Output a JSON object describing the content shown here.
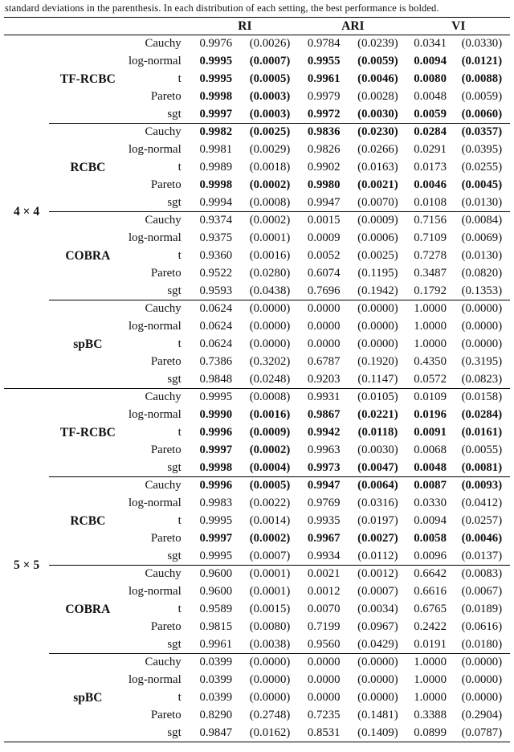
{
  "caption": "standard deviations in the parenthesis. In each distribution of each setting, the best performance is bolded.",
  "table": {
    "metrics": [
      "RI",
      "ARI",
      "VI"
    ],
    "settings": [
      {
        "label": "4 × 4",
        "methods": [
          {
            "name": "TF-RCBC",
            "rows": [
              [
                "Cauchy",
                "0.9976",
                "(0.0026)",
                "0.9784",
                "(0.0239)",
                "0.0341",
                "(0.0330)",
                [
                  0,
                  0,
                  0
                ]
              ],
              [
                "log-normal",
                "0.9995",
                "(0.0007)",
                "0.9955",
                "(0.0059)",
                "0.0094",
                "(0.0121)",
                [
                  1,
                  1,
                  1
                ]
              ],
              [
                "t",
                "0.9995",
                "(0.0005)",
                "0.9961",
                "(0.0046)",
                "0.0080",
                "(0.0088)",
                [
                  1,
                  1,
                  1
                ]
              ],
              [
                "Pareto",
                "0.9998",
                "(0.0003)",
                "0.9979",
                "(0.0028)",
                "0.0048",
                "(0.0059)",
                [
                  1,
                  0,
                  0
                ]
              ],
              [
                "sgt",
                "0.9997",
                "(0.0003)",
                "0.9972",
                "(0.0030)",
                "0.0059",
                "(0.0060)",
                [
                  1,
                  1,
                  1
                ]
              ]
            ]
          },
          {
            "name": "RCBC",
            "rows": [
              [
                "Cauchy",
                "0.9982",
                "(0.0025)",
                "0.9836",
                "(0.0230)",
                "0.0284",
                "(0.0357)",
                [
                  1,
                  1,
                  1
                ]
              ],
              [
                "log-normal",
                "0.9981",
                "(0.0029)",
                "0.9826",
                "(0.0266)",
                "0.0291",
                "(0.0395)",
                [
                  0,
                  0,
                  0
                ]
              ],
              [
                "t",
                "0.9989",
                "(0.0018)",
                "0.9902",
                "(0.0163)",
                "0.0173",
                "(0.0255)",
                [
                  0,
                  0,
                  0
                ]
              ],
              [
                "Pareto",
                "0.9998",
                "(0.0002)",
                "0.9980",
                "(0.0021)",
                "0.0046",
                "(0.0045)",
                [
                  1,
                  1,
                  1
                ]
              ],
              [
                "sgt",
                "0.9994",
                "(0.0008)",
                "0.9947",
                "(0.0070)",
                "0.0108",
                "(0.0130)",
                [
                  0,
                  0,
                  0
                ]
              ]
            ]
          },
          {
            "name": "COBRA",
            "rows": [
              [
                "Cauchy",
                "0.9374",
                "(0.0002)",
                "0.0015",
                "(0.0009)",
                "0.7156",
                "(0.0084)",
                [
                  0,
                  0,
                  0
                ]
              ],
              [
                "log-normal",
                "0.9375",
                "(0.0001)",
                "0.0009",
                "(0.0006)",
                "0.7109",
                "(0.0069)",
                [
                  0,
                  0,
                  0
                ]
              ],
              [
                "t",
                "0.9360",
                "(0.0016)",
                "0.0052",
                "(0.0025)",
                "0.7278",
                "(0.0130)",
                [
                  0,
                  0,
                  0
                ]
              ],
              [
                "Pareto",
                "0.9522",
                "(0.0280)",
                "0.6074",
                "(0.1195)",
                "0.3487",
                "(0.0820)",
                [
                  0,
                  0,
                  0
                ]
              ],
              [
                "sgt",
                "0.9593",
                "(0.0438)",
                "0.7696",
                "(0.1942)",
                "0.1792",
                "(0.1353)",
                [
                  0,
                  0,
                  0
                ]
              ]
            ]
          },
          {
            "name": "spBC",
            "rows": [
              [
                "Cauchy",
                "0.0624",
                "(0.0000)",
                "0.0000",
                "(0.0000)",
                "1.0000",
                "(0.0000)",
                [
                  0,
                  0,
                  0
                ]
              ],
              [
                "log-normal",
                "0.0624",
                "(0.0000)",
                "0.0000",
                "(0.0000)",
                "1.0000",
                "(0.0000)",
                [
                  0,
                  0,
                  0
                ]
              ],
              [
                "t",
                "0.0624",
                "(0.0000)",
                "0.0000",
                "(0.0000)",
                "1.0000",
                "(0.0000)",
                [
                  0,
                  0,
                  0
                ]
              ],
              [
                "Pareto",
                "0.7386",
                "(0.3202)",
                "0.6787",
                "(0.1920)",
                "0.4350",
                "(0.3195)",
                [
                  0,
                  0,
                  0
                ]
              ],
              [
                "sgt",
                "0.9848",
                "(0.0248)",
                "0.9203",
                "(0.1147)",
                "0.0572",
                "(0.0823)",
                [
                  0,
                  0,
                  0
                ]
              ]
            ]
          }
        ]
      },
      {
        "label": "5 × 5",
        "methods": [
          {
            "name": "TF-RCBC",
            "rows": [
              [
                "Cauchy",
                "0.9995",
                "(0.0008)",
                "0.9931",
                "(0.0105)",
                "0.0109",
                "(0.0158)",
                [
                  0,
                  0,
                  0
                ]
              ],
              [
                "log-normal",
                "0.9990",
                "(0.0016)",
                "0.9867",
                "(0.0221)",
                "0.0196",
                "(0.0284)",
                [
                  1,
                  1,
                  1
                ]
              ],
              [
                "t",
                "0.9996",
                "(0.0009)",
                "0.9942",
                "(0.0118)",
                "0.0091",
                "(0.0161)",
                [
                  1,
                  1,
                  1
                ]
              ],
              [
                "Pareto",
                "0.9997",
                "(0.0002)",
                "0.9963",
                "(0.0030)",
                "0.0068",
                "(0.0055)",
                [
                  1,
                  0,
                  0
                ]
              ],
              [
                "sgt",
                "0.9998",
                "(0.0004)",
                "0.9973",
                "(0.0047)",
                "0.0048",
                "(0.0081)",
                [
                  1,
                  1,
                  1
                ]
              ]
            ]
          },
          {
            "name": "RCBC",
            "rows": [
              [
                "Cauchy",
                "0.9996",
                "(0.0005)",
                "0.9947",
                "(0.0064)",
                "0.0087",
                "(0.0093)",
                [
                  1,
                  1,
                  1
                ]
              ],
              [
                "log-normal",
                "0.9983",
                "(0.0022)",
                "0.9769",
                "(0.0316)",
                "0.0330",
                "(0.0412)",
                [
                  0,
                  0,
                  0
                ]
              ],
              [
                "t",
                "0.9995",
                "(0.0014)",
                "0.9935",
                "(0.0197)",
                "0.0094",
                "(0.0257)",
                [
                  0,
                  0,
                  0
                ]
              ],
              [
                "Pareto",
                "0.9997",
                "(0.0002)",
                "0.9967",
                "(0.0027)",
                "0.0058",
                "(0.0046)",
                [
                  1,
                  1,
                  1
                ]
              ],
              [
                "sgt",
                "0.9995",
                "(0.0007)",
                "0.9934",
                "(0.0112)",
                "0.0096",
                "(0.0137)",
                [
                  0,
                  0,
                  0
                ]
              ]
            ]
          },
          {
            "name": "COBRA",
            "rows": [
              [
                "Cauchy",
                "0.9600",
                "(0.0001)",
                "0.0021",
                "(0.0012)",
                "0.6642",
                "(0.0083)",
                [
                  0,
                  0,
                  0
                ]
              ],
              [
                "log-normal",
                "0.9600",
                "(0.0001)",
                "0.0012",
                "(0.0007)",
                "0.6616",
                "(0.0067)",
                [
                  0,
                  0,
                  0
                ]
              ],
              [
                "t",
                "0.9589",
                "(0.0015)",
                "0.0070",
                "(0.0034)",
                "0.6765",
                "(0.0189)",
                [
                  0,
                  0,
                  0
                ]
              ],
              [
                "Pareto",
                "0.9815",
                "(0.0080)",
                "0.7199",
                "(0.0967)",
                "0.2422",
                "(0.0616)",
                [
                  0,
                  0,
                  0
                ]
              ],
              [
                "sgt",
                "0.9961",
                "(0.0038)",
                "0.9560",
                "(0.0429)",
                "0.0191",
                "(0.0180)",
                [
                  0,
                  0,
                  0
                ]
              ]
            ]
          },
          {
            "name": "spBC",
            "rows": [
              [
                "Cauchy",
                "0.0399",
                "(0.0000)",
                "0.0000",
                "(0.0000)",
                "1.0000",
                "(0.0000)",
                [
                  0,
                  0,
                  0
                ]
              ],
              [
                "log-normal",
                "0.0399",
                "(0.0000)",
                "0.0000",
                "(0.0000)",
                "1.0000",
                "(0.0000)",
                [
                  0,
                  0,
                  0
                ]
              ],
              [
                "t",
                "0.0399",
                "(0.0000)",
                "0.0000",
                "(0.0000)",
                "1.0000",
                "(0.0000)",
                [
                  0,
                  0,
                  0
                ]
              ],
              [
                "Pareto",
                "0.8290",
                "(0.2748)",
                "0.7235",
                "(0.1481)",
                "0.3388",
                "(0.2904)",
                [
                  0,
                  0,
                  0
                ]
              ],
              [
                "sgt",
                "0.9847",
                "(0.0162)",
                "0.8531",
                "(0.1409)",
                "0.0899",
                "(0.0787)",
                [
                  0,
                  0,
                  0
                ]
              ]
            ]
          }
        ]
      }
    ]
  }
}
